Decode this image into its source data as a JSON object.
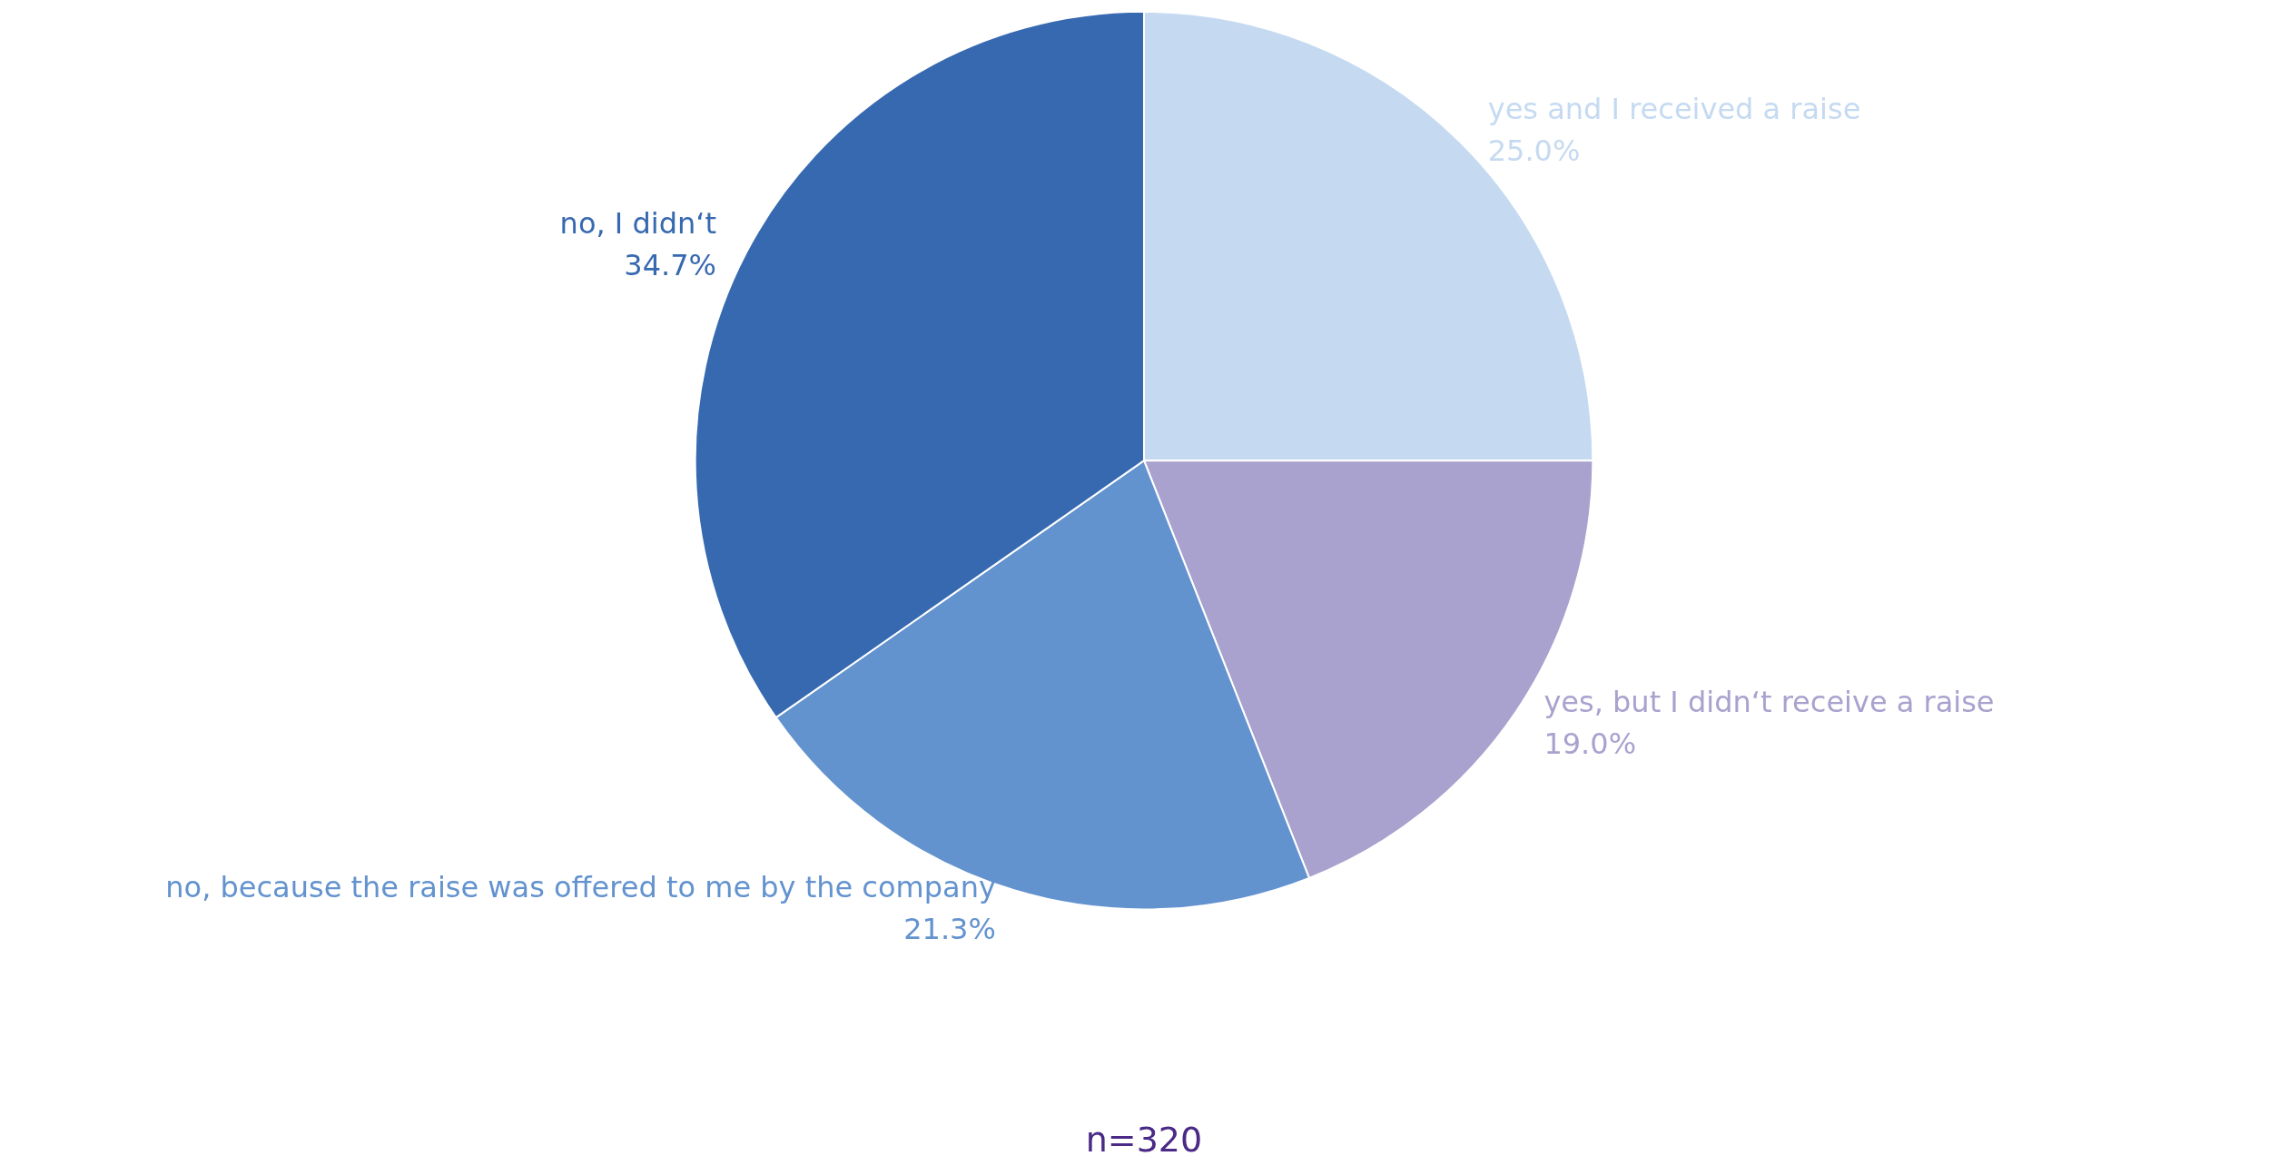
{
  "chart_data": {
    "type": "pie",
    "categories": [
      "yes and I received a raise",
      "yes, but I didn‘t receive a raise",
      "no, because the raise was offered to me by the company",
      "no, I didn‘t"
    ],
    "values": [
      25.0,
      19.0,
      21.3,
      34.7
    ],
    "value_labels": [
      "25.0%",
      "19.0%",
      "21.3%",
      "34.7%"
    ],
    "colors": [
      "#c5daf1",
      "#aaa2ce",
      "#6393cf",
      "#3769b1"
    ],
    "legend": false,
    "annotations": [
      "n=320"
    ]
  }
}
